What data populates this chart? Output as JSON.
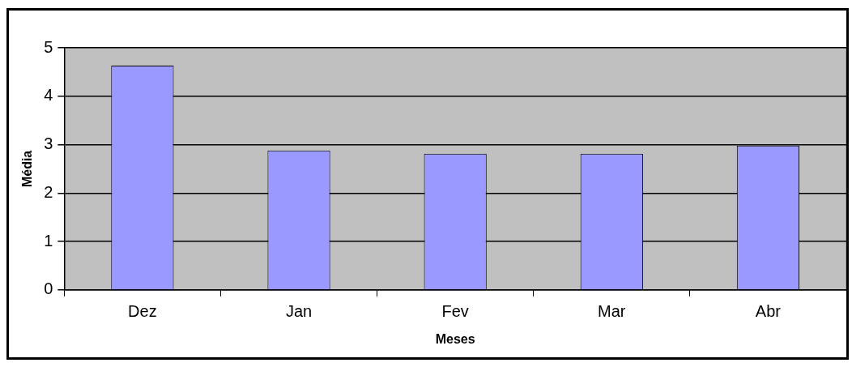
{
  "chart_data": {
    "type": "bar",
    "xlabel": "Meses",
    "ylabel": "Média",
    "categories": [
      "Dez",
      "Jan",
      "Fev",
      "Mar",
      "Abr"
    ],
    "values": [
      4.63,
      2.88,
      2.81,
      2.81,
      2.98
    ],
    "color": "#9999ff",
    "ylim": [
      0,
      5
    ],
    "yticks": [
      0,
      1,
      2,
      3,
      4,
      5
    ],
    "grid": "y",
    "legend": false
  }
}
